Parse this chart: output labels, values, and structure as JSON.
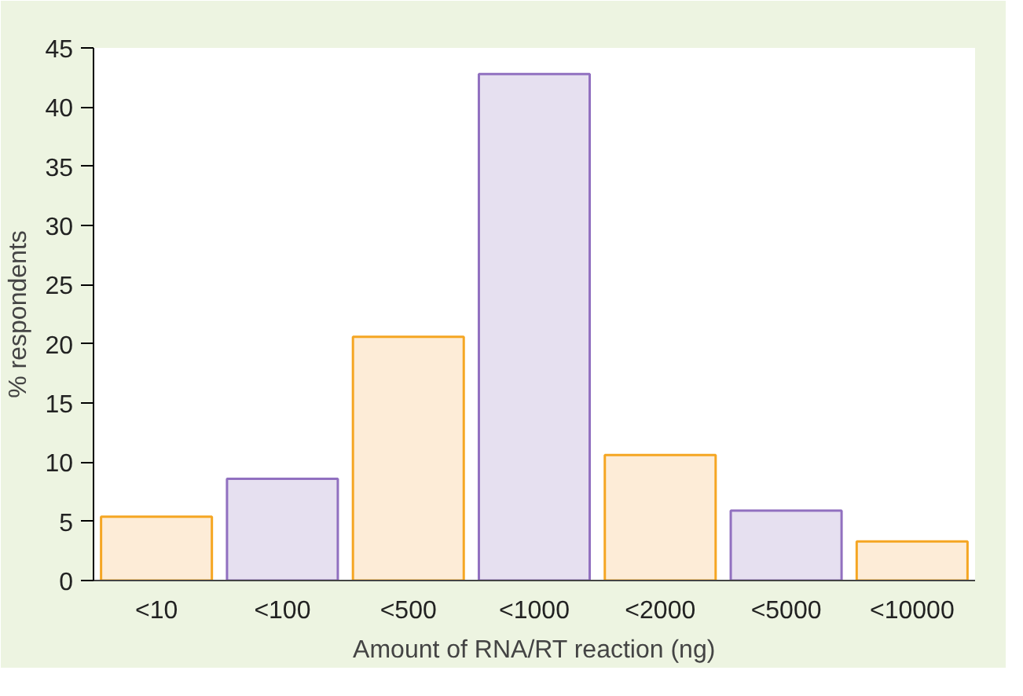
{
  "chart_data": {
    "type": "bar",
    "xlabel": "Amount of RNA/RT reaction (ng)",
    "ylabel": "% respondents",
    "categories": [
      "<10",
      "<100",
      "<500",
      "<1000",
      "<2000",
      "<5000",
      "<10000"
    ],
    "values": [
      5.4,
      8.6,
      20.6,
      42.8,
      10.6,
      5.9,
      3.3
    ],
    "colors": [
      "#fdecd7",
      "#e6e0f0",
      "#fdecd7",
      "#e6e0f0",
      "#fdecd7",
      "#e6e0f0",
      "#fdecd7"
    ],
    "ylim": [
      0,
      45
    ],
    "yticks": [
      0,
      5,
      10,
      15,
      20,
      25,
      30,
      35,
      40,
      45
    ],
    "grid": false
  }
}
